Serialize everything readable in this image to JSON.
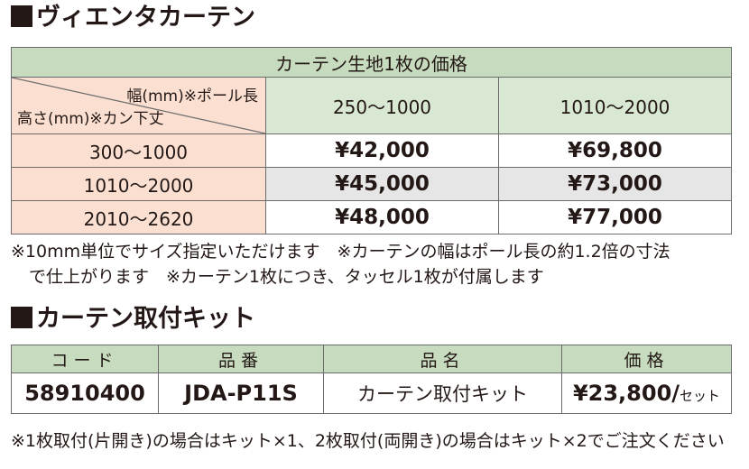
{
  "section1": {
    "title": "ヴィエンタカーテン",
    "table_title": "カーテン生地1枚の価格",
    "corner_width_label": "幅(mm)※ポール長",
    "corner_height_label": "高さ(mm)※カン下丈",
    "columns": [
      "250〜1000",
      "1010〜2000"
    ],
    "rows": [
      {
        "height": "300〜1000",
        "prices": [
          "¥42,000",
          "¥69,800"
        ]
      },
      {
        "height": "1010〜2000",
        "prices": [
          "¥45,000",
          "¥73,000"
        ]
      },
      {
        "height": "2010〜2620",
        "prices": [
          "¥48,000",
          "¥77,000"
        ]
      }
    ],
    "note_line1": "※10mm単位でサイズ指定いただけます　※カーテンの幅はポール長の約1.2倍の寸法",
    "note_line2": "で仕上がります　※カーテン1枚につき、タッセル1枚が付属します"
  },
  "section2": {
    "title": "カーテン取付キット",
    "headers": [
      "コード",
      "品番",
      "品名",
      "価格"
    ],
    "row": {
      "code": "58910400",
      "part_no": "JDA-P11S",
      "name": "カーテン取付キット",
      "price": "¥23,800/",
      "unit": "セット"
    },
    "note": "※1枚取付(片開き)の場合はキット×1、2枚取付(両開き)の場合はキット×2でご注文ください"
  },
  "colors": {
    "header_green": "#c7dbbf",
    "light_green": "#d8e8d3",
    "row_label_pink": "#fbe0d2",
    "shaded_gray": "#e6e6e6"
  }
}
